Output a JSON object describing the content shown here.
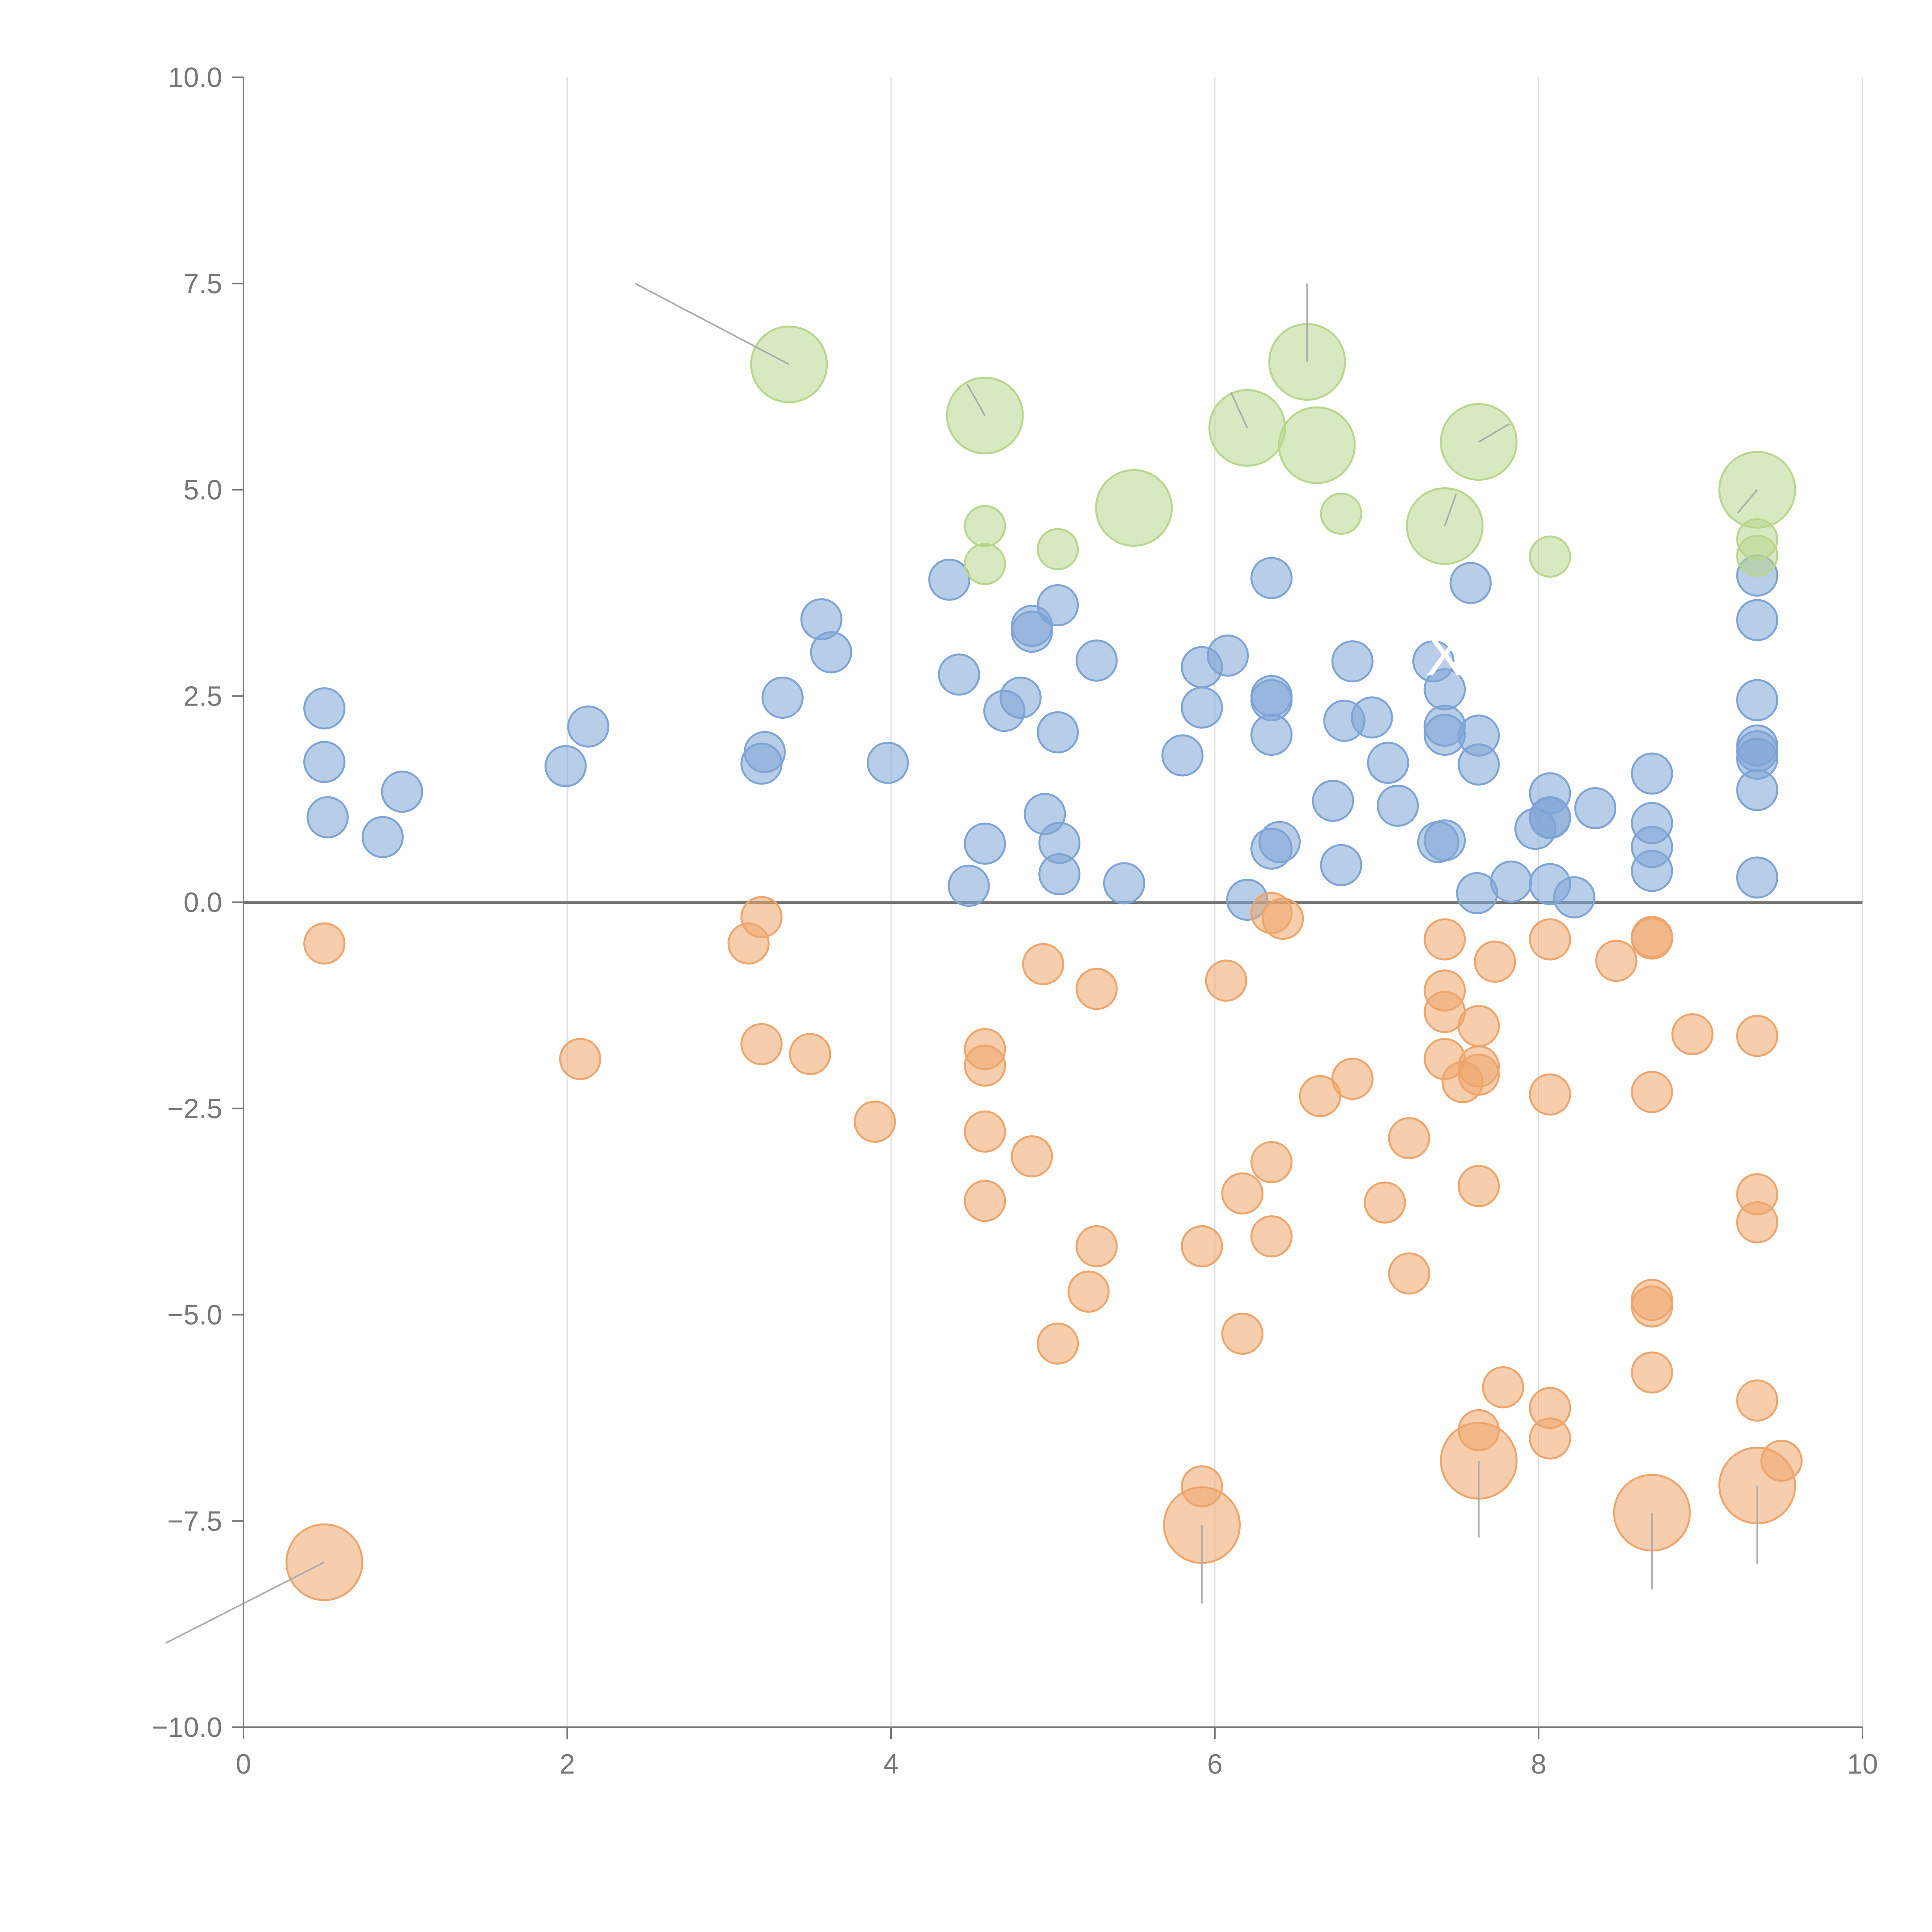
{
  "chart_data": {
    "type": "scatter",
    "title": "",
    "xlabel": "",
    "ylabel": "",
    "xlim": [
      0,
      10
    ],
    "ylim": [
      -10,
      10
    ],
    "x_ticks": [
      0,
      2,
      4,
      6,
      8,
      10
    ],
    "x_tick_labels": [
      "0",
      "2",
      "4",
      "6",
      "8",
      "10"
    ],
    "y_ticks": [
      10,
      7.5,
      5,
      2.5,
      0,
      -2.5,
      -5,
      -7.5,
      -10
    ],
    "y_tick_labels": [
      "10.0",
      "7.5",
      "5.0",
      "2.5",
      "0.0",
      "−2.5",
      "−5.0",
      "−7.5",
      "−10.0"
    ],
    "grid": "vertical",
    "reference_line_y": 0,
    "colors": {
      "blue": "#7ea4d5",
      "orange": "#eea56b",
      "green": "#b8d68c",
      "axis": "#777777",
      "grid": "#dddddd",
      "leader": "#aaaaaa",
      "annotation": "#ffffff"
    },
    "series": [
      {
        "name": "blue",
        "color_key": "blue",
        "points": [
          [
            0.5,
            2.35
          ],
          [
            0.5,
            1.7
          ],
          [
            0.52,
            1.03
          ],
          [
            0.86,
            0.79
          ],
          [
            0.98,
            1.34
          ],
          [
            1.99,
            1.65
          ],
          [
            2.13,
            2.13
          ],
          [
            3.2,
            1.68
          ],
          [
            3.22,
            1.82
          ],
          [
            3.33,
            2.48
          ],
          [
            3.57,
            3.43
          ],
          [
            3.63,
            3.03
          ],
          [
            3.98,
            1.69
          ],
          [
            4.36,
            3.91
          ],
          [
            4.42,
            2.76
          ],
          [
            4.48,
            0.2
          ],
          [
            4.58,
            0.71
          ],
          [
            4.7,
            2.32
          ],
          [
            4.8,
            2.48
          ],
          [
            4.87,
            3.35
          ],
          [
            4.87,
            3.28
          ],
          [
            4.95,
            1.07
          ],
          [
            5.03,
            3.6
          ],
          [
            5.03,
            2.06
          ],
          [
            5.04,
            0.72
          ],
          [
            5.04,
            0.34
          ],
          [
            5.27,
            2.93
          ],
          [
            5.44,
            0.23
          ],
          [
            5.8,
            1.78
          ],
          [
            5.92,
            2.85
          ],
          [
            5.92,
            2.36
          ],
          [
            6.08,
            2.99
          ],
          [
            6.2,
            0.03
          ],
          [
            6.35,
            3.93
          ],
          [
            6.35,
            2.5
          ],
          [
            6.35,
            2.45
          ],
          [
            6.35,
            2.03
          ],
          [
            6.35,
            0.65
          ],
          [
            6.4,
            0.73
          ],
          [
            6.73,
            1.23
          ],
          [
            6.78,
            0.45
          ],
          [
            6.8,
            2.2
          ],
          [
            6.85,
            2.92
          ],
          [
            6.97,
            2.24
          ],
          [
            7.07,
            1.69
          ],
          [
            7.13,
            1.17
          ],
          [
            7.35,
            2.92
          ],
          [
            7.38,
            0.73
          ],
          [
            7.42,
            0.75
          ],
          [
            7.42,
            2.58
          ],
          [
            7.42,
            2.14
          ],
          [
            7.42,
            2.03
          ],
          [
            7.58,
            3.87
          ],
          [
            7.62,
            0.11
          ],
          [
            7.63,
            2.02
          ],
          [
            7.63,
            1.67
          ],
          [
            7.83,
            0.25
          ],
          [
            7.98,
            0.89
          ],
          [
            8.07,
            1.32
          ],
          [
            8.07,
            1.02
          ],
          [
            8.07,
            1.03
          ],
          [
            8.07,
            0.22
          ],
          [
            8.22,
            0.06
          ],
          [
            8.35,
            1.14
          ],
          [
            8.7,
            1.56
          ],
          [
            8.7,
            0.96
          ],
          [
            8.7,
            0.67
          ],
          [
            8.7,
            0.38
          ],
          [
            9.35,
            3.96
          ],
          [
            9.35,
            3.42
          ],
          [
            9.35,
            2.45
          ],
          [
            9.35,
            1.9
          ],
          [
            9.35,
            1.83
          ],
          [
            9.35,
            1.74
          ],
          [
            9.35,
            1.36
          ],
          [
            9.35,
            0.3
          ]
        ]
      },
      {
        "name": "orange",
        "color_key": "orange",
        "points": [
          [
            0.5,
            -0.5
          ],
          [
            2.08,
            -1.9
          ],
          [
            3.12,
            -0.5
          ],
          [
            3.2,
            -0.18
          ],
          [
            3.2,
            -1.72
          ],
          [
            3.5,
            -1.84
          ],
          [
            3.9,
            -2.66
          ],
          [
            4.58,
            -1.78
          ],
          [
            4.58,
            -1.98
          ],
          [
            4.58,
            -2.78
          ],
          [
            4.58,
            -3.62
          ],
          [
            4.87,
            -3.08
          ],
          [
            4.94,
            -0.75
          ],
          [
            5.03,
            -5.35
          ],
          [
            5.22,
            -4.72
          ],
          [
            5.27,
            -1.05
          ],
          [
            5.27,
            -4.17
          ],
          [
            5.92,
            -4.17
          ],
          [
            5.92,
            -7.08
          ],
          [
            6.07,
            -0.95
          ],
          [
            6.17,
            -3.53
          ],
          [
            6.17,
            -5.23
          ],
          [
            6.35,
            -3.15
          ],
          [
            6.35,
            -4.05
          ],
          [
            6.35,
            -0.13
          ],
          [
            6.42,
            -0.2
          ],
          [
            6.65,
            -2.35
          ],
          [
            6.85,
            -2.14
          ],
          [
            7.05,
            -3.64
          ],
          [
            7.2,
            -2.86
          ],
          [
            7.2,
            -4.5
          ],
          [
            7.42,
            -0.45
          ],
          [
            7.42,
            -1.07
          ],
          [
            7.42,
            -1.33
          ],
          [
            7.42,
            -1.9
          ],
          [
            7.53,
            -2.18
          ],
          [
            7.63,
            -1.5
          ],
          [
            7.63,
            -1.99
          ],
          [
            7.63,
            -2.09
          ],
          [
            7.63,
            -3.44
          ],
          [
            7.63,
            -6.4
          ],
          [
            7.73,
            -0.72
          ],
          [
            7.78,
            -5.88
          ],
          [
            8.07,
            -0.45
          ],
          [
            8.07,
            -2.33
          ],
          [
            8.07,
            -6.13
          ],
          [
            8.07,
            -6.5
          ],
          [
            8.48,
            -0.71
          ],
          [
            8.7,
            -0.42
          ],
          [
            8.7,
            -0.44
          ],
          [
            8.7,
            -2.3
          ],
          [
            8.7,
            -4.82
          ],
          [
            8.7,
            -4.9
          ],
          [
            8.7,
            -5.7
          ],
          [
            8.95,
            -1.6
          ],
          [
            9.35,
            -1.62
          ],
          [
            9.35,
            -3.54
          ],
          [
            9.35,
            -3.88
          ],
          [
            9.35,
            -6.04
          ],
          [
            9.5,
            -6.77
          ]
        ]
      },
      {
        "name": "green",
        "color_key": "green",
        "points": [
          [
            4.58,
            4.56
          ],
          [
            4.58,
            4.1
          ],
          [
            5.03,
            4.28
          ],
          [
            6.78,
            4.71
          ],
          [
            8.07,
            4.19
          ],
          [
            9.35,
            4.4
          ],
          [
            9.35,
            4.2
          ]
        ]
      }
    ],
    "highlighted": [
      {
        "series": "green",
        "x": 3.37,
        "y": 6.52
      },
      {
        "series": "green",
        "x": 4.58,
        "y": 5.9
      },
      {
        "series": "green",
        "x": 6.57,
        "y": 6.55
      },
      {
        "series": "green",
        "x": 6.2,
        "y": 5.75
      },
      {
        "series": "green",
        "x": 6.63,
        "y": 5.54
      },
      {
        "series": "green",
        "x": 7.63,
        "y": 5.58
      },
      {
        "series": "green",
        "x": 5.5,
        "y": 4.78
      },
      {
        "series": "green",
        "x": 7.42,
        "y": 4.56
      },
      {
        "series": "green",
        "x": 9.35,
        "y": 5.0
      },
      {
        "series": "orange",
        "x": 0.5,
        "y": -8.0
      },
      {
        "series": "orange",
        "x": 5.92,
        "y": -7.55
      },
      {
        "series": "orange",
        "x": 7.63,
        "y": -6.77
      },
      {
        "series": "orange",
        "x": 8.7,
        "y": -7.4
      },
      {
        "series": "orange",
        "x": 9.35,
        "y": -7.07
      }
    ],
    "annotation_leaders": [
      {
        "from": [
          3.37,
          6.52
        ],
        "to": [
          2.42,
          7.5
        ]
      },
      {
        "from": [
          4.58,
          5.9
        ],
        "to": [
          4.47,
          6.28
        ]
      },
      {
        "from": [
          6.57,
          6.55
        ],
        "to": [
          6.57,
          7.5
        ]
      },
      {
        "from": [
          6.2,
          5.75
        ],
        "to": [
          6.1,
          6.18
        ]
      },
      {
        "from": [
          7.63,
          5.58
        ],
        "to": [
          7.82,
          5.8
        ]
      },
      {
        "from": [
          7.42,
          4.56
        ],
        "to": [
          7.49,
          4.95
        ]
      },
      {
        "from": [
          9.35,
          5.0
        ],
        "to": [
          9.23,
          4.72
        ]
      },
      {
        "from": [
          0.5,
          -8.0
        ],
        "to": [
          -0.48,
          -8.98
        ]
      },
      {
        "from": [
          5.92,
          -7.55
        ],
        "to": [
          5.92,
          -8.5
        ]
      },
      {
        "from": [
          7.63,
          -6.77
        ],
        "to": [
          7.63,
          -7.7
        ]
      },
      {
        "from": [
          8.7,
          -7.4
        ],
        "to": [
          8.7,
          -8.33
        ]
      },
      {
        "from": [
          9.35,
          -7.07
        ],
        "to": [
          9.35,
          -8.02
        ]
      }
    ],
    "annotations": [
      {
        "text": "X",
        "x": 7.42,
        "y": 2.75
      }
    ]
  }
}
